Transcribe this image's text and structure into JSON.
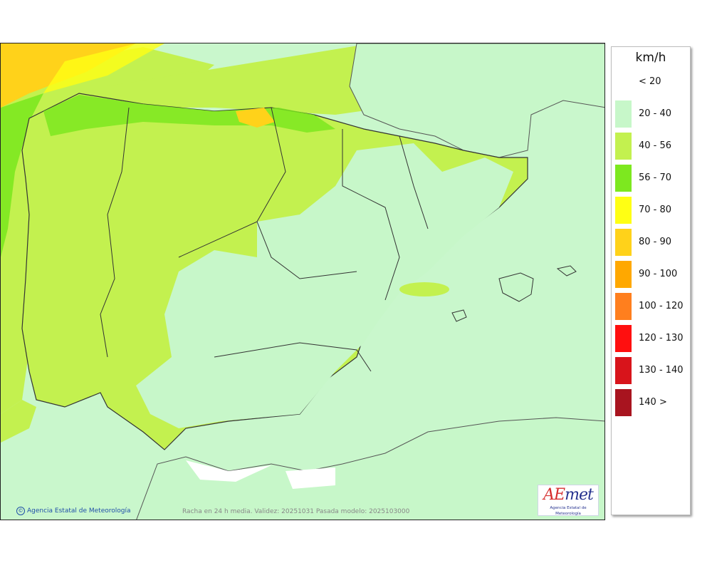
{
  "legend": {
    "title": "km/h",
    "items": [
      {
        "label": "< 20",
        "color": ""
      },
      {
        "label": "20 - 40",
        "color": "#c7f7c9"
      },
      {
        "label": "40 - 56",
        "color": "#c3f14f"
      },
      {
        "label": "56 - 70",
        "color": "#7de81f"
      },
      {
        "label": "70 - 80",
        "color": "#ffff14"
      },
      {
        "label": "80 - 90",
        "color": "#ffd21a"
      },
      {
        "label": "90 - 100",
        "color": "#ffa800"
      },
      {
        "label": "100 - 120",
        "color": "#ff7f1e"
      },
      {
        "label": "120 - 130",
        "color": "#ff0f0f"
      },
      {
        "label": "130 - 140",
        "color": "#d8141b"
      },
      {
        "label": "140 >",
        "color": "#a8141f"
      }
    ]
  },
  "footer": {
    "copyright": "Agencia Estatal de Meteorología",
    "caption": "Racha en 24 h media. Validez: 20251031 Pasada modelo: 2025103000"
  },
  "logo": {
    "brand_a": "AE",
    "brand_b": "met",
    "subtitle": "Agencia Estatal de Meteorología"
  }
}
